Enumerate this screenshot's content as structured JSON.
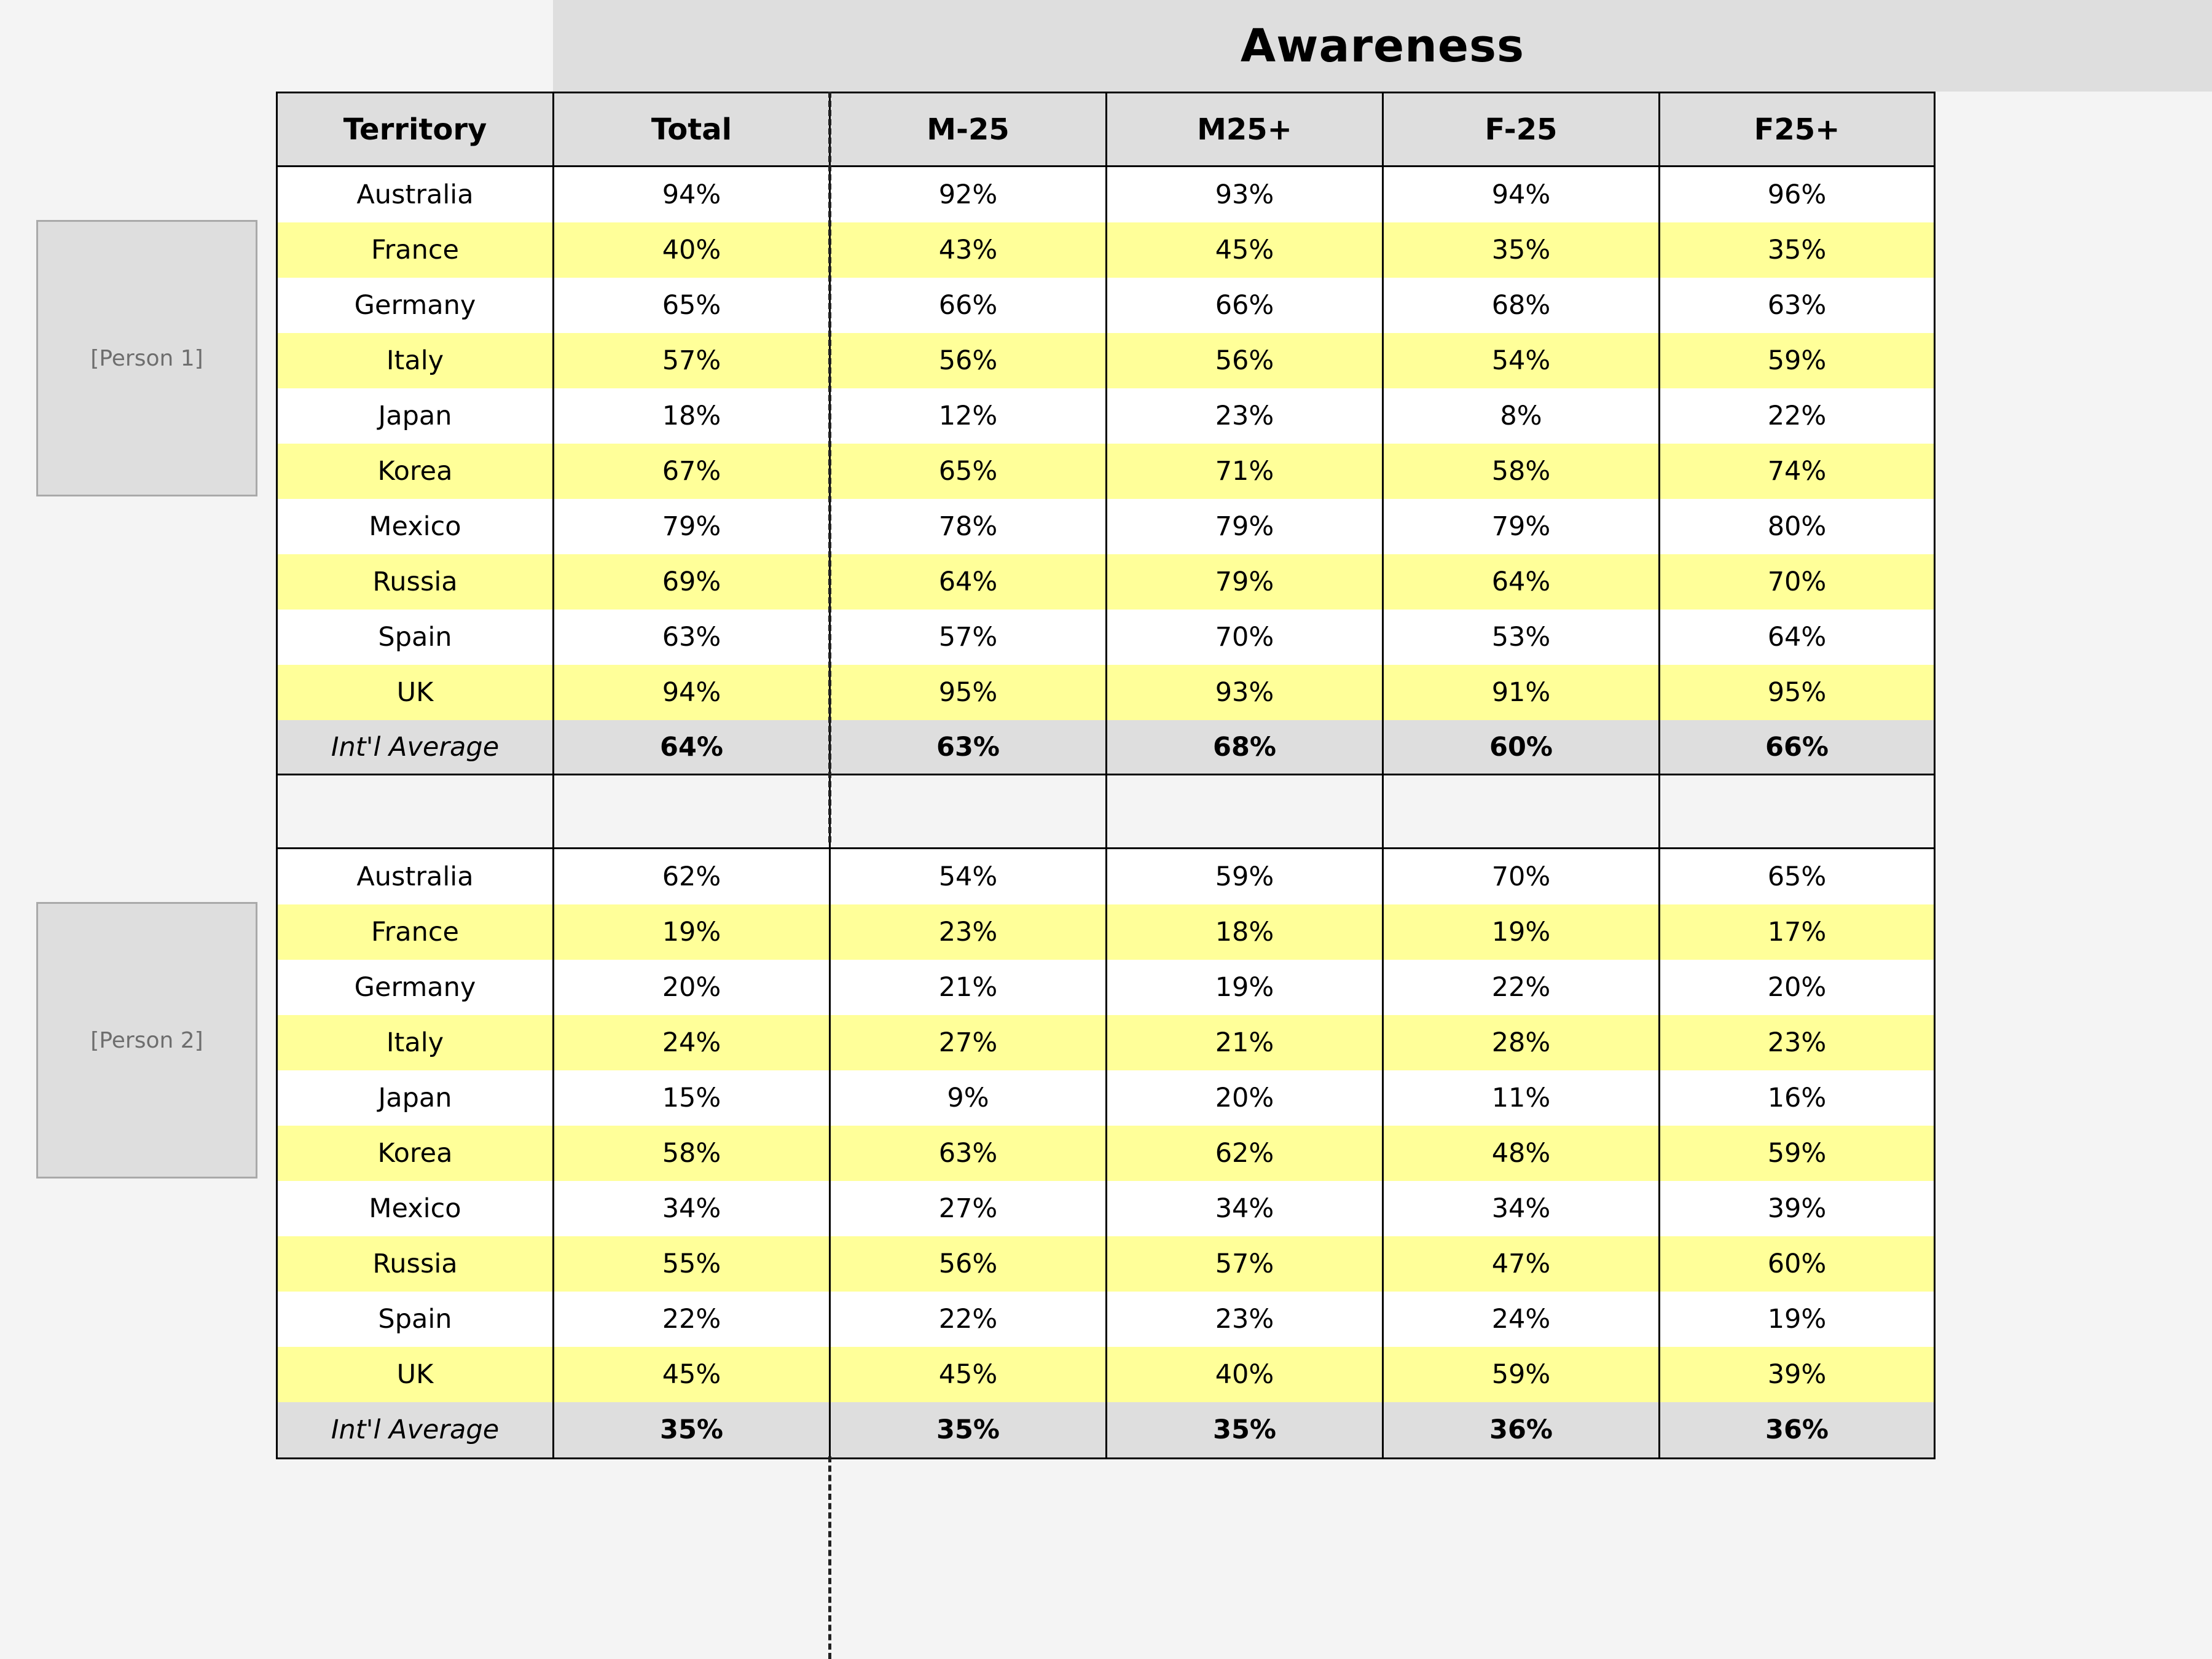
{
  "title": "Awareness",
  "columns": [
    "Territory",
    "Total",
    "M-25",
    "M25+",
    "F-25",
    "F25+"
  ],
  "people": [
    "[Person 1]",
    "[Person 2]"
  ],
  "sections": [
    {
      "rows": [
        [
          "Australia",
          "94%",
          "92%",
          "93%",
          "94%",
          "96%"
        ],
        [
          "France",
          "40%",
          "43%",
          "45%",
          "35%",
          "35%"
        ],
        [
          "Germany",
          "65%",
          "66%",
          "66%",
          "68%",
          "63%"
        ],
        [
          "Italy",
          "57%",
          "56%",
          "56%",
          "54%",
          "59%"
        ],
        [
          "Japan",
          "18%",
          "12%",
          "23%",
          "8%",
          "22%"
        ],
        [
          "Korea",
          "67%",
          "65%",
          "71%",
          "58%",
          "74%"
        ],
        [
          "Mexico",
          "79%",
          "78%",
          "79%",
          "79%",
          "80%"
        ],
        [
          "Russia",
          "69%",
          "64%",
          "79%",
          "64%",
          "70%"
        ],
        [
          "Spain",
          "63%",
          "57%",
          "70%",
          "53%",
          "64%"
        ],
        [
          "UK",
          "94%",
          "95%",
          "93%",
          "91%",
          "95%"
        ]
      ],
      "average": [
        "Int'l Average",
        "64%",
        "63%",
        "68%",
        "60%",
        "66%"
      ]
    },
    {
      "rows": [
        [
          "Australia",
          "62%",
          "54%",
          "59%",
          "70%",
          "65%"
        ],
        [
          "France",
          "19%",
          "23%",
          "18%",
          "19%",
          "17%"
        ],
        [
          "Germany",
          "20%",
          "21%",
          "19%",
          "22%",
          "20%"
        ],
        [
          "Italy",
          "24%",
          "27%",
          "21%",
          "28%",
          "23%"
        ],
        [
          "Japan",
          "15%",
          "9%",
          "20%",
          "11%",
          "16%"
        ],
        [
          "Korea",
          "58%",
          "63%",
          "62%",
          "48%",
          "59%"
        ],
        [
          "Mexico",
          "34%",
          "27%",
          "34%",
          "34%",
          "39%"
        ],
        [
          "Russia",
          "55%",
          "56%",
          "57%",
          "47%",
          "60%"
        ],
        [
          "Spain",
          "22%",
          "22%",
          "23%",
          "24%",
          "19%"
        ],
        [
          "UK",
          "45%",
          "45%",
          "40%",
          "59%",
          "39%"
        ]
      ],
      "average": [
        "Int'l Average",
        "35%",
        "35%",
        "35%",
        "36%",
        "36%"
      ]
    }
  ]
}
